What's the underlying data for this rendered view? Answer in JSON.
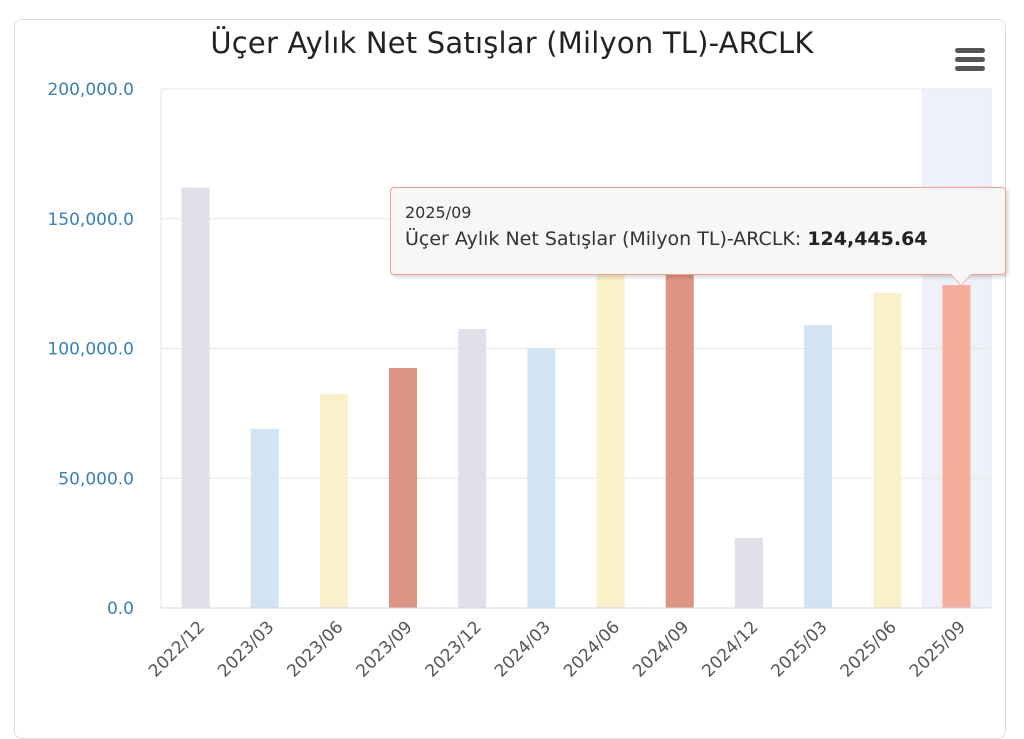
{
  "chart_data": {
    "type": "bar",
    "title": "Üçer Aylık Net Satışlar (Milyon TL)-ARCLK",
    "categories": [
      "2022/12",
      "2023/03",
      "2023/06",
      "2023/09",
      "2023/12",
      "2024/03",
      "2024/06",
      "2024/09",
      "2024/12",
      "2025/03",
      "2025/06",
      "2025/09"
    ],
    "values": [
      162000,
      69000,
      82500,
      92500,
      107500,
      100000,
      137500,
      140000,
      27000,
      109000,
      121500,
      124445.64
    ],
    "bar_colors": [
      "#e2dfe9",
      "#d2e4f1",
      "#faf0c9",
      "#de9483",
      "#e2dfe9",
      "#d2e4f1",
      "#faf0c9",
      "#de9483",
      "#e2dfe9",
      "#d2e4f1",
      "#faf0c9",
      "#f6ad9c"
    ],
    "yticks": [
      "0.0",
      "50,000.0",
      "100,000.0",
      "150,000.0",
      "200,000.0"
    ],
    "ylim": [
      0,
      200000
    ],
    "grid": true,
    "highlighted_category_index": 11
  },
  "tooltip": {
    "category": "2025/09",
    "series_label": "Üçer Aylık Net Satışlar (Milyon TL)-ARCLK:",
    "value": "124,445.64"
  },
  "colors": {
    "axis_label": "#3a7fb5",
    "tick_label": "#555555",
    "grid": "#e6e6e6",
    "hover_band": "#eef2f8"
  },
  "menu": {
    "icon": "hamburger-menu-icon"
  }
}
